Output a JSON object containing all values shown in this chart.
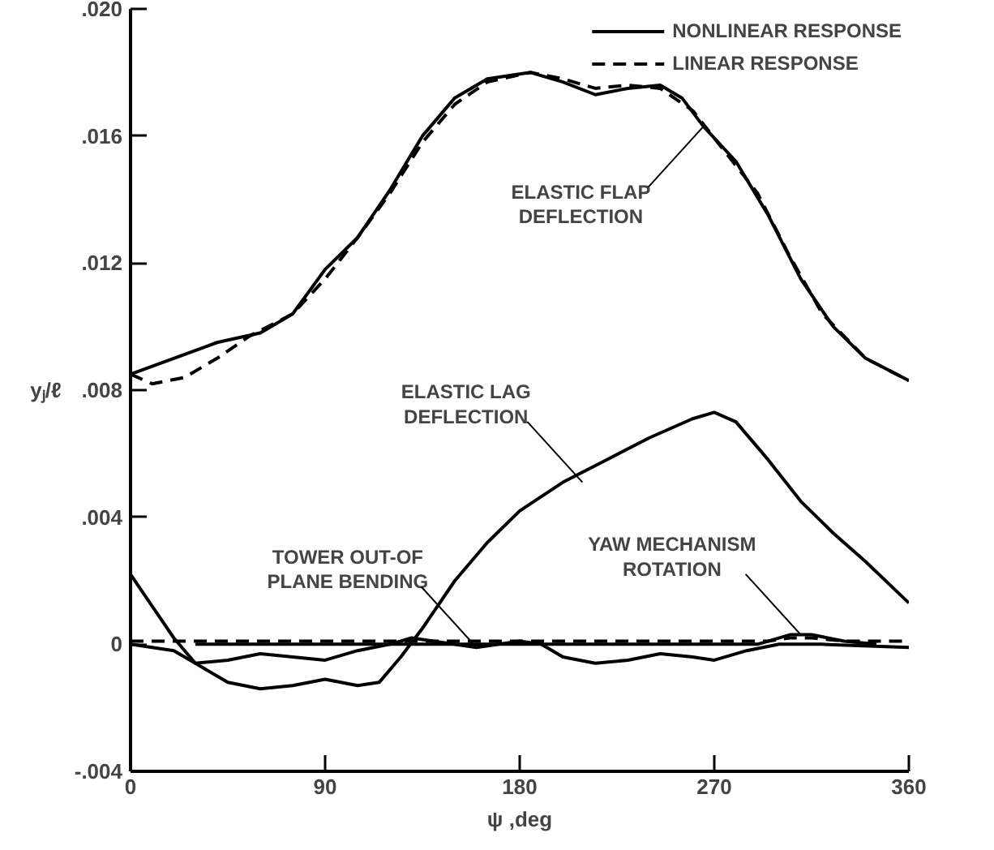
{
  "chart_data": {
    "type": "line",
    "xlabel": "ψ ,deg",
    "ylabel": "yⱼ/ℓ",
    "xlim": [
      0,
      360
    ],
    "xticks": [
      0,
      90,
      180,
      270,
      360
    ],
    "ylim": [
      -0.004,
      0.02
    ],
    "yticks": [
      {
        "value": -0.004,
        "label": "-.004"
      },
      0,
      {
        "value": 0.004,
        "label": ".004"
      },
      {
        "value": 0.008,
        "label": ".008"
      },
      {
        "value": 0.012,
        "label": ".012"
      },
      {
        "value": 0.016,
        "label": ".016"
      },
      {
        "value": 0.02,
        "label": ".020"
      }
    ],
    "grid": false,
    "legend": "top right",
    "series": [
      {
        "name": "NONLINEAR RESPONSE",
        "color": "#000000",
        "line_style": "solid",
        "x": [
          0,
          20,
          40,
          60,
          75,
          90,
          105,
          120,
          135,
          150,
          165,
          185,
          200,
          215,
          230,
          245,
          255,
          265,
          280,
          295,
          310,
          325,
          340,
          360
        ],
        "values": [
          0.0085,
          0.009,
          0.0095,
          0.0098,
          0.0104,
          0.0118,
          0.0128,
          0.0143,
          0.016,
          0.0172,
          0.0178,
          0.018,
          0.0177,
          0.0173,
          0.0175,
          0.0176,
          0.0172,
          0.0163,
          0.0152,
          0.0135,
          0.0115,
          0.01,
          0.009,
          0.0083
        ]
      },
      {
        "name": "LINEAR RESPONSE",
        "color": "#000000",
        "line_style": "dashed",
        "x": [
          0,
          10,
          25,
          40,
          55,
          75,
          90,
          105,
          120,
          135,
          150,
          165,
          185,
          200,
          215,
          230,
          245,
          260,
          275,
          290,
          305,
          320,
          340,
          360
        ],
        "values": [
          0.0085,
          0.0082,
          0.0084,
          0.009,
          0.0097,
          0.0104,
          0.0115,
          0.0128,
          0.0142,
          0.0158,
          0.017,
          0.0177,
          0.018,
          0.0178,
          0.0175,
          0.0176,
          0.0175,
          0.0168,
          0.0155,
          0.0142,
          0.0122,
          0.0104,
          0.009,
          0.0083
        ]
      },
      {
        "color": "#000000",
        "line_style": "solid",
        "x": [
          0,
          10,
          20,
          30,
          45,
          60,
          75,
          90,
          105,
          115,
          125,
          135,
          150,
          165,
          180,
          200,
          220,
          240,
          260,
          270,
          280,
          295,
          310,
          325,
          340,
          360
        ],
        "values": [
          0.0022,
          0.0012,
          0.0002,
          -0.0006,
          -0.0012,
          -0.0014,
          -0.0013,
          -0.0011,
          -0.0013,
          -0.0012,
          -0.0004,
          0.0005,
          0.002,
          0.0032,
          0.0042,
          0.0051,
          0.0058,
          0.0065,
          0.0071,
          0.0073,
          0.007,
          0.0058,
          0.0045,
          0.0035,
          0.0026,
          0.0013
        ]
      },
      {
        "color": "#000000",
        "line_style": "solid",
        "x": [
          0,
          20,
          30,
          45,
          60,
          75,
          90,
          105,
          120,
          130,
          140,
          160,
          180,
          190,
          200,
          215,
          230,
          245,
          260,
          270,
          285,
          300,
          320,
          360
        ],
        "values": [
          0,
          -0.0002,
          -0.0006,
          -0.0005,
          -0.0003,
          -0.0004,
          -0.0005,
          -0.0002,
          0,
          0.0002,
          0.0001,
          -0.0001,
          0.0001,
          0,
          -0.0004,
          -0.0006,
          -0.0005,
          -0.0003,
          -0.0004,
          -0.0005,
          -0.0002,
          0,
          0,
          -0.0001
        ]
      },
      {
        "color": "#000000",
        "line_style": "dashed",
        "x": [
          0,
          90,
          180,
          270,
          295,
          305,
          315,
          330,
          360
        ],
        "values": [
          0.0001,
          0.0001,
          0.0001,
          0.0001,
          0.0001,
          0.0002,
          0.0002,
          0.0001,
          0.0001
        ]
      },
      {
        "color": "#000000",
        "line_style": "solid",
        "x": [
          30,
          60,
          120,
          180,
          240,
          290,
          305,
          315,
          330,
          345
        ],
        "values": [
          0,
          0,
          0,
          0,
          0,
          0,
          0.0003,
          0.0003,
          0.0001,
          0
        ]
      }
    ],
    "annotations": [
      {
        "text": "ELASTIC FLAP\nDEFLECTION",
        "x": 265,
        "y": 0.0163
      },
      {
        "text": "ELASTIC LAG\nDEFLECTION",
        "x": 209,
        "y": 0.0051
      },
      {
        "text": "TOWER OUT-OF\nPLANE BENDING",
        "x": 160,
        "y": -0.0001
      },
      {
        "text": "YAW MECHANISM\nROTATION",
        "x": 310,
        "y": 0.0003
      }
    ]
  }
}
